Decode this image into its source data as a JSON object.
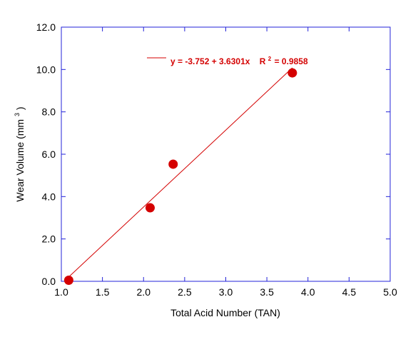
{
  "colors": {
    "axis": "#2323d8",
    "series": "#d40000",
    "text": "#000000",
    "background": "#ffffff"
  },
  "chart_data": {
    "type": "scatter",
    "title": "",
    "xlabel": "Total Acid Number (TAN)",
    "ylabel_main": "Wear Volume (mm",
    "ylabel_sup": "3",
    "ylabel_close": ")",
    "xlim": [
      1.0,
      5.0
    ],
    "ylim": [
      0.0,
      12.0
    ],
    "x_ticks": [
      "1.0",
      "1.5",
      "2.0",
      "2.5",
      "3.0",
      "3.5",
      "4.0",
      "4.5",
      "5.0"
    ],
    "y_ticks": [
      "0.0",
      "2.0",
      "4.0",
      "6.0",
      "8.0",
      "10.0",
      "12.0"
    ],
    "grid": false,
    "series": [
      {
        "points": [
          {
            "x": 1.09,
            "y": 0.05
          },
          {
            "x": 2.08,
            "y": 3.47
          },
          {
            "x": 2.36,
            "y": 5.53
          },
          {
            "x": 3.81,
            "y": 9.84
          }
        ]
      }
    ],
    "fit": {
      "intercept": -3.752,
      "slope": 3.6301,
      "x_range": [
        1.09,
        3.81
      ],
      "label_main": "y = -3.752 + 3.6301x",
      "label_r_prefix": "R",
      "label_r_sup": "2",
      "label_r_value": "= 0.9858"
    },
    "legend_position": "top-center"
  }
}
